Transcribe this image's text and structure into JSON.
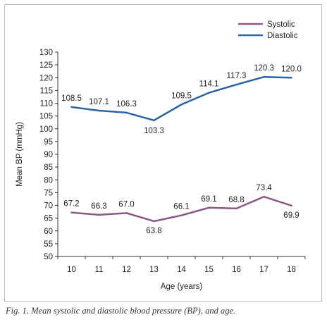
{
  "figure": {
    "caption": "Fig. 1. Mean systolic and diastolic blood pressure (BP), and age."
  },
  "chart_data": {
    "type": "line",
    "title": "",
    "xlabel": "Age (years)",
    "ylabel": "Mean BP (mmHg)",
    "x": [
      10,
      11,
      12,
      13,
      14,
      15,
      16,
      17,
      18
    ],
    "ylim": [
      50,
      130
    ],
    "yticks": [
      50,
      55,
      60,
      65,
      70,
      75,
      80,
      85,
      90,
      95,
      100,
      105,
      110,
      115,
      120,
      125,
      130
    ],
    "grid": false,
    "legend": "top-right",
    "series": [
      {
        "name": "Systolic",
        "color": "#8a5a84",
        "values": [
          67.2,
          66.3,
          67.0,
          63.8,
          66.1,
          69.1,
          68.8,
          73.4,
          69.9
        ],
        "labels": [
          "67.2",
          "66.3",
          "67.0",
          "63.8",
          "66.1",
          "69.1",
          "68.8",
          "73.4",
          "69.9"
        ]
      },
      {
        "name": "Diastolic",
        "color": "#2a64a0",
        "values": [
          108.5,
          107.1,
          106.3,
          103.3,
          109.5,
          114.1,
          117.3,
          120.3,
          120.0
        ],
        "labels": [
          "108.5",
          "107.1",
          "106.3",
          "103.3",
          "109.5",
          "114.1",
          "117.3",
          "120.3",
          "120.0"
        ]
      }
    ]
  }
}
